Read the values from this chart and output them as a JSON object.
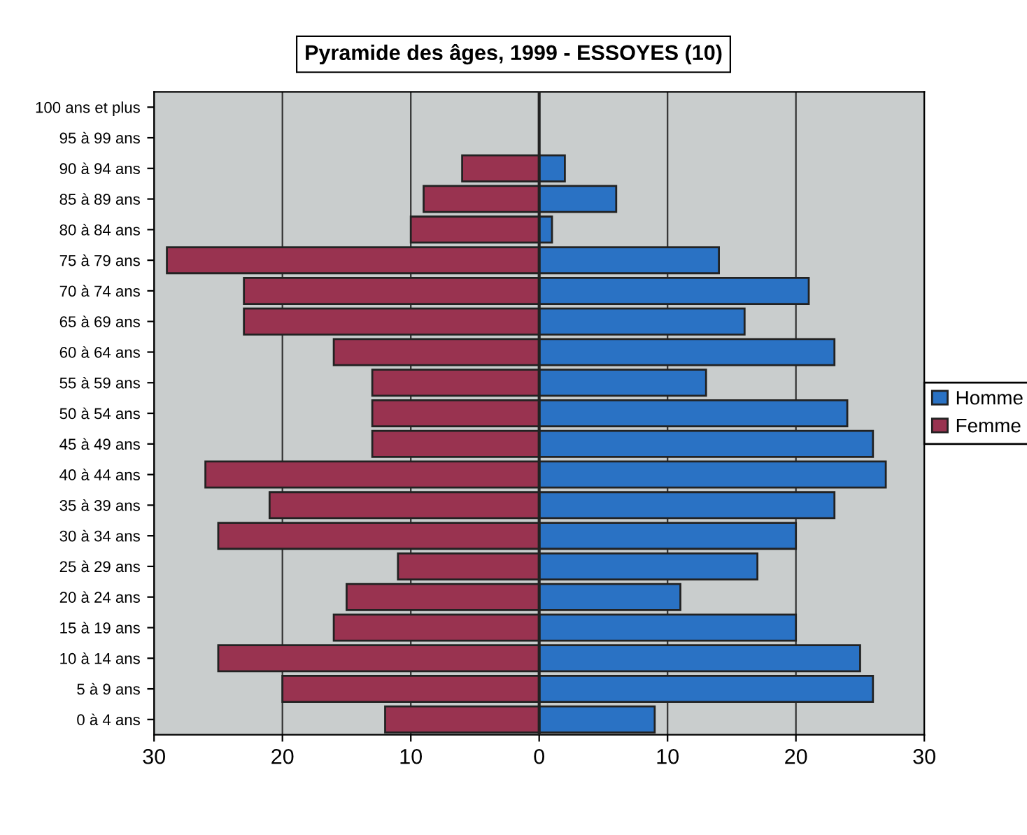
{
  "chart_data": {
    "type": "bar",
    "orientation": "horizontal",
    "title": "Pyramide des âges, 1999 - ESSOYES (10)",
    "categories": [
      "100 ans et plus",
      "95 à 99 ans",
      "90 à 94 ans",
      "85 à 89 ans",
      "80 à 84 ans",
      "75 à 79 ans",
      "70 à 74 ans",
      "65 à 69 ans",
      "60 à 64 ans",
      "55 à 59 ans",
      "50 à 54 ans",
      "45 à 49 ans",
      "40 à 44 ans",
      "35 à 39 ans",
      "30 à 34 ans",
      "25 à 29 ans",
      "20 à 24 ans",
      "15 à 19 ans",
      "10 à 14 ans",
      "5 à 9 ans",
      "0 à 4 ans"
    ],
    "series": [
      {
        "name": "Homme",
        "color": "#2a72c4",
        "values": [
          0,
          0,
          2,
          6,
          1,
          14,
          21,
          16,
          23,
          13,
          24,
          26,
          27,
          23,
          20,
          17,
          11,
          20,
          25,
          26,
          9
        ]
      },
      {
        "name": "Femme",
        "color": "#993350",
        "values": [
          0,
          0,
          -6,
          -9,
          -10,
          -29,
          -23,
          -23,
          -16,
          -13,
          -13,
          -13,
          -26,
          -21,
          -25,
          -11,
          -15,
          -16,
          -25,
          -20,
          -12
        ]
      }
    ],
    "xlim": [
      -30,
      30
    ],
    "xticks": [
      {
        "value": -30,
        "label": "30"
      },
      {
        "value": -20,
        "label": "20"
      },
      {
        "value": -10,
        "label": "10"
      },
      0,
      10,
      20,
      30
    ],
    "grid": "x",
    "legend": "right",
    "stacked": true
  }
}
